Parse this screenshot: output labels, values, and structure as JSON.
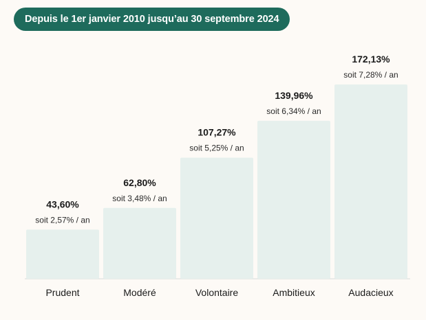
{
  "header": {
    "period_label": "Depuis le 1er janvier 2010 jusqu’au 30 septembre 2024"
  },
  "colors": {
    "accent": "#1e6b5c",
    "bar_fill": "#e6f0ed",
    "baseline": "#d7dcda",
    "background": "#fdfaf6"
  },
  "chart_data": {
    "type": "bar",
    "categories": [
      "Prudent",
      "Modéré",
      "Volontaire",
      "Ambitieux",
      "Audacieux"
    ],
    "values": [
      43.6,
      62.8,
      107.27,
      139.96,
      172.13
    ],
    "annualized": [
      2.57,
      3.48,
      5.25,
      6.34,
      7.28
    ],
    "value_labels": [
      "43,60%",
      "62,80%",
      "107,27%",
      "139,96%",
      "172,13%"
    ],
    "annualized_labels": [
      "soit 2,57% / an",
      "soit 3,48% / an",
      "soit 5,25% / an",
      "soit 6,34% / an",
      "soit 7,28% / an"
    ],
    "title": "",
    "xlabel": "",
    "ylabel": "",
    "grid": false
  }
}
